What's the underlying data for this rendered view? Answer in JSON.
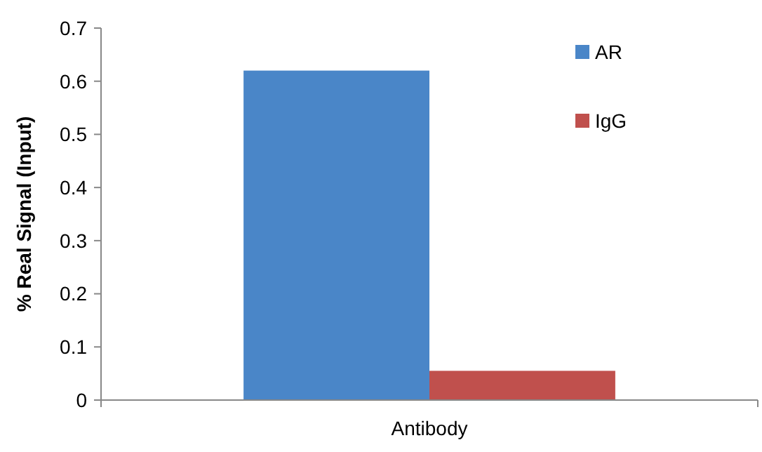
{
  "chart_data": {
    "type": "bar",
    "ylabel": "% Real Signal (Input)",
    "categories": [
      "Antibody"
    ],
    "series": [
      {
        "name": "AR",
        "color": "#4a86c8",
        "values": [
          0.62
        ]
      },
      {
        "name": "IgG",
        "color": "#c0504d",
        "values": [
          0.055
        ]
      }
    ],
    "ylim": [
      0,
      0.7
    ],
    "yticks": [
      0,
      0.1,
      0.2,
      0.3,
      0.4,
      0.5,
      0.6,
      0.7
    ],
    "grid": false,
    "legend": "top right"
  }
}
